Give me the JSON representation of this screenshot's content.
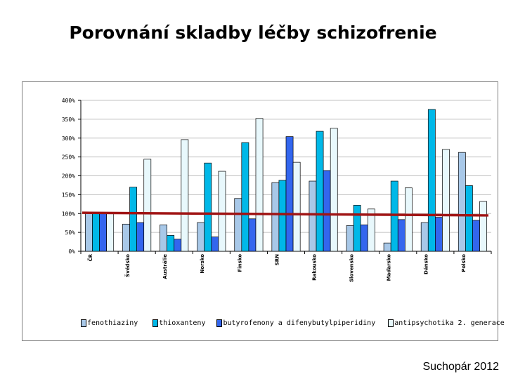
{
  "page_title": "Porovnání skladby léčby schizofrenie",
  "author": "Suchopár 2012",
  "colors": {
    "fenothiaziny": "#a8c8e8",
    "thioxanteny": "#00b8e8",
    "butyrofenony": "#3366ee",
    "antipsychotika2": "#e8f8fc",
    "reference_line": "#a01414",
    "grid": "#c0c0c0"
  },
  "chart_data": {
    "type": "bar",
    "title": "",
    "xlabel": "",
    "ylabel": "",
    "ylim": [
      0,
      400
    ],
    "ytick_values": [
      0,
      50,
      100,
      150,
      200,
      250,
      300,
      350,
      400
    ],
    "ytick_labels": [
      "0%",
      "50%",
      "100%",
      "150%",
      "200%",
      "250%",
      "300%",
      "350%",
      "400%"
    ],
    "grid": true,
    "legend_position": "bottom",
    "categories": [
      "ČR",
      "Švédsko",
      "Austrálie",
      "Norsko",
      "Finsko",
      "SRN",
      "Rakousko",
      "Slovensko",
      "Maďarsko",
      "Dánsko",
      "Polsko"
    ],
    "series": [
      {
        "name": "fenothiaziny",
        "values": [
          100,
          72,
          70,
          76,
          140,
          182,
          186,
          68,
          22,
          76,
          262
        ]
      },
      {
        "name": "thioxanteny",
        "values": [
          100,
          170,
          42,
          234,
          288,
          188,
          318,
          122,
          186,
          376,
          174
        ]
      },
      {
        "name": "butyrofenony a difenybutylpiperidiny",
        "values": [
          100,
          76,
          32,
          38,
          86,
          304,
          214,
          70,
          84,
          90,
          82
        ]
      },
      {
        "name": "antipsychotika 2. generace",
        "values": [
          100,
          244,
          296,
          212,
          352,
          236,
          326,
          112,
          168,
          270,
          132
        ]
      }
    ],
    "reference_line": [
      102,
      95
    ]
  }
}
